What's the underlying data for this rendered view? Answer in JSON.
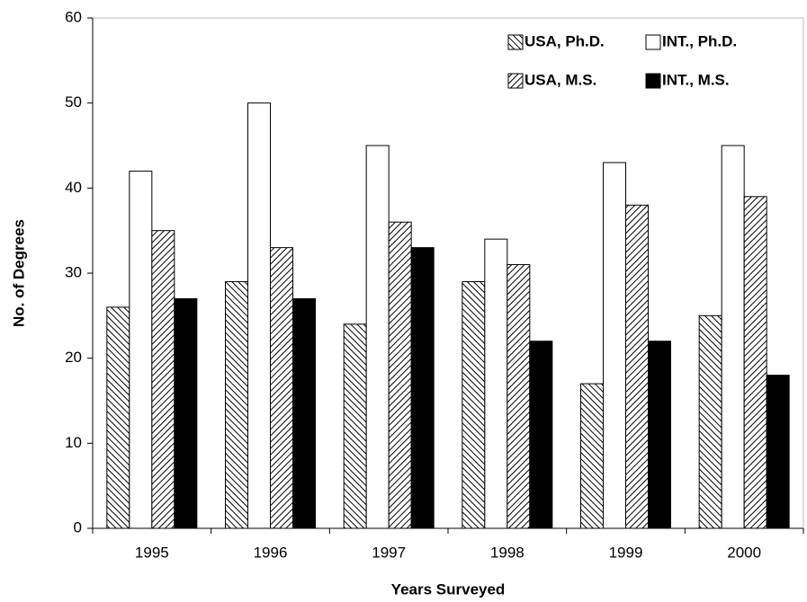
{
  "chart_data": {
    "type": "bar",
    "x_label": "Years Surveyed",
    "y_label": "No. of Degrees",
    "categories": [
      "1995",
      "1996",
      "1997",
      "1998",
      "1999",
      "2000"
    ],
    "series": [
      {
        "name": "USA, Ph.D.",
        "color": "#000000",
        "pattern": "backslash",
        "values": [
          26,
          29,
          24,
          29,
          17,
          25
        ]
      },
      {
        "name": "INT., Ph.D.",
        "color": "#000000",
        "pattern": "empty",
        "values": [
          42,
          50,
          45,
          34,
          43,
          45
        ]
      },
      {
        "name": "USA, M.S.",
        "color": "#000000",
        "pattern": "slash",
        "values": [
          35,
          33,
          36,
          31,
          38,
          39
        ]
      },
      {
        "name": "INT., M.S.",
        "color": "#000000",
        "pattern": "solid",
        "values": [
          27,
          27,
          33,
          22,
          22,
          18
        ]
      }
    ],
    "ylim": [
      0,
      60
    ],
    "yticks": [
      0,
      10,
      20,
      30,
      40,
      50,
      60
    ],
    "legend": "upper right",
    "legend_columns": 2
  }
}
